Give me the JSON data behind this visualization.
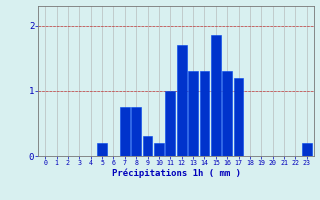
{
  "hours": [
    0,
    1,
    2,
    3,
    4,
    5,
    6,
    7,
    8,
    9,
    10,
    11,
    12,
    13,
    14,
    15,
    16,
    17,
    18,
    19,
    20,
    21,
    22,
    23
  ],
  "values": [
    0,
    0,
    0,
    0,
    0,
    0.2,
    0,
    0.75,
    0.75,
    0.3,
    0.2,
    1.0,
    1.7,
    1.3,
    1.3,
    1.85,
    1.3,
    1.2,
    0,
    0,
    0,
    0,
    0,
    0.2
  ],
  "bar_color": "#0033cc",
  "bar_edge_color": "#0044ee",
  "background_color": "#d8f0f0",
  "grid_color": "#b0b0b0",
  "xlabel": "Précipitations 1h ( mm )",
  "yticks": [
    0,
    1,
    2
  ],
  "ylim": [
    0,
    2.3
  ],
  "xlim": [
    -0.6,
    23.6
  ],
  "xlabel_color": "#0000bb",
  "tick_color": "#0000bb",
  "axis_color": "#777777",
  "bar_width": 0.85
}
